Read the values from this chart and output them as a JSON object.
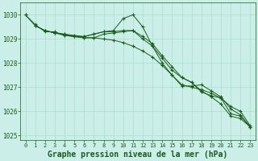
{
  "bg_color": "#cceee8",
  "grid_color": "#aaddcc",
  "line_color": "#1a5c1a",
  "marker_color": "#1a5c1a",
  "xlabel": "Graphe pression niveau de la mer (hPa)",
  "xlabel_fontsize": 7,
  "ylabel_fontsize": 6.5,
  "xlim": [
    -0.5,
    23.5
  ],
  "ylim": [
    1024.8,
    1030.5
  ],
  "yticks": [
    1025,
    1026,
    1027,
    1028,
    1029,
    1030
  ],
  "xticks": [
    0,
    1,
    2,
    3,
    4,
    5,
    6,
    7,
    8,
    9,
    10,
    11,
    12,
    13,
    14,
    15,
    16,
    17,
    18,
    19,
    20,
    21,
    22,
    23
  ],
  "series": [
    {
      "x": [
        0,
        1,
        2,
        3,
        4,
        5,
        6,
        7,
        8,
        9,
        10,
        11,
        12,
        13,
        14,
        15,
        16,
        17,
        18,
        19,
        20,
        21,
        22,
        23
      ],
      "y": [
        1030.0,
        1029.6,
        1029.3,
        1029.3,
        1029.15,
        1029.1,
        1029.1,
        1029.2,
        1029.3,
        1029.35,
        1029.85,
        1030.0,
        1029.5,
        1028.7,
        1028.0,
        1027.5,
        1027.05,
        1027.05,
        1027.1,
        1026.85,
        1026.6,
        1026.1,
        1025.85,
        1025.35
      ]
    },
    {
      "x": [
        0,
        1,
        2,
        3,
        4,
        5,
        6,
        7,
        8,
        9,
        10,
        11,
        12,
        13,
        14,
        15,
        16,
        17,
        18,
        19,
        20,
        21,
        22,
        23
      ],
      "y": [
        1030.0,
        1029.55,
        1029.35,
        1029.25,
        1029.15,
        1029.1,
        1029.05,
        1029.05,
        1029.0,
        1028.95,
        1028.85,
        1028.7,
        1028.5,
        1028.25,
        1027.9,
        1027.5,
        1027.1,
        1027.0,
        1026.9,
        1026.75,
        1026.55,
        1026.2,
        1026.0,
        1025.4
      ]
    },
    {
      "x": [
        1,
        2,
        3,
        4,
        5,
        6,
        7,
        8,
        9,
        10,
        11,
        12,
        13,
        14,
        15,
        16,
        17,
        18,
        19,
        20,
        21,
        22,
        23
      ],
      "y": [
        1029.55,
        1029.35,
        1029.25,
        1029.2,
        1029.15,
        1029.1,
        1029.2,
        1029.3,
        1029.3,
        1029.35,
        1029.35,
        1029.1,
        1028.8,
        1028.3,
        1027.85,
        1027.4,
        1027.2,
        1026.8,
        1026.65,
        1026.55,
        1025.9,
        1025.8,
        1025.35
      ]
    },
    {
      "x": [
        2,
        3,
        4,
        5,
        6,
        7,
        8,
        9,
        10,
        11,
        12,
        13,
        14,
        15,
        16,
        17,
        18,
        19,
        20,
        21,
        22,
        23
      ],
      "y": [
        1029.35,
        1029.25,
        1029.2,
        1029.1,
        1029.05,
        1029.05,
        1029.2,
        1029.25,
        1029.3,
        1029.35,
        1029.0,
        1028.7,
        1028.2,
        1027.7,
        1027.4,
        1027.2,
        1026.85,
        1026.6,
        1026.3,
        1025.8,
        1025.7,
        1025.35
      ]
    }
  ]
}
